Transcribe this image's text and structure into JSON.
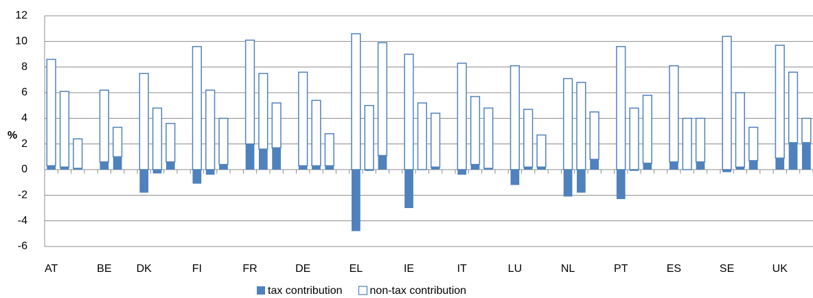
{
  "chart_data": {
    "type": "stacked_bar",
    "y_label": "%",
    "categories": [
      "AT",
      null,
      null,
      null,
      "BE",
      null,
      null,
      "DK",
      null,
      null,
      null,
      "FI",
      null,
      null,
      null,
      "FR",
      null,
      null,
      null,
      "DE",
      null,
      null,
      null,
      "EL",
      null,
      null,
      null,
      "IE",
      null,
      null,
      null,
      "IT",
      null,
      null,
      null,
      "LU",
      null,
      null,
      null,
      "NL",
      null,
      null,
      null,
      "PT",
      null,
      null,
      null,
      "ES",
      null,
      null,
      null,
      "SE",
      null,
      null,
      null,
      "UK",
      null,
      null
    ],
    "series": [
      {
        "name": "tax contribution",
        "color": "#4f81bd",
        "filled": true,
        "values": [
          0.3,
          0.2,
          0.1,
          null,
          0.6,
          1.0,
          null,
          -1.8,
          -0.3,
          0.6,
          null,
          -1.1,
          -0.4,
          0.4,
          null,
          2.0,
          1.6,
          1.7,
          null,
          0.3,
          0.3,
          0.3,
          null,
          -4.8,
          -0.1,
          1.1,
          null,
          -3.0,
          0,
          0.2,
          null,
          -0.4,
          0.4,
          0.1,
          null,
          -1.2,
          0.2,
          0.2,
          null,
          -2.1,
          -1.8,
          0.8,
          null,
          -2.3,
          -0.1,
          0.5,
          null,
          0.6,
          0,
          0.6,
          null,
          -0.2,
          0.2,
          0.7,
          null,
          0.9,
          2.1,
          2.1
        ]
      },
      {
        "name": "non-tax contribution",
        "color": "#4f81bd",
        "filled": false,
        "values": [
          8.3,
          5.9,
          2.3,
          null,
          5.6,
          2.3,
          null,
          7.5,
          4.8,
          3.0,
          null,
          9.6,
          6.2,
          3.6,
          null,
          8.1,
          5.9,
          3.5,
          null,
          7.3,
          5.1,
          2.5,
          null,
          10.6,
          5.0,
          8.8,
          null,
          9.0,
          5.2,
          4.2,
          null,
          8.3,
          5.3,
          4.7,
          null,
          8.1,
          4.5,
          2.5,
          null,
          7.1,
          6.8,
          3.7,
          null,
          9.6,
          4.8,
          5.3,
          null,
          7.5,
          4.0,
          3.4,
          null,
          10.4,
          5.8,
          2.6,
          null,
          8.8,
          5.5,
          1.9
        ]
      }
    ],
    "ylim": [
      -6,
      12
    ],
    "yticks": [
      -6,
      -4,
      -2,
      0,
      2,
      4,
      6,
      8,
      10,
      12
    ],
    "grid": true,
    "legend": "bottom"
  }
}
